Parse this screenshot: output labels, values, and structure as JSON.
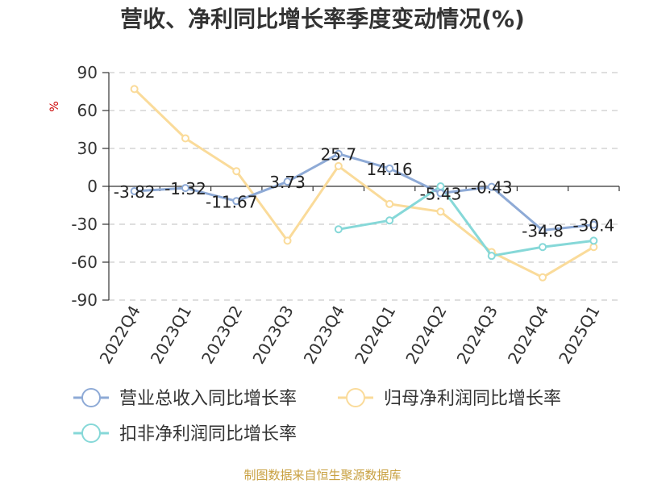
{
  "chart_data": {
    "type": "line",
    "title": "营收、净利同比增长率季度变动情况(%)",
    "ylabel": "%",
    "ylim": [
      -90,
      90
    ],
    "yticks": [
      90,
      60,
      30,
      0,
      -30,
      -60,
      -90
    ],
    "categories": [
      "2022Q4",
      "2023Q1",
      "2023Q2",
      "2023Q3",
      "2023Q4",
      "2024Q1",
      "2024Q2",
      "2024Q3",
      "2024Q4",
      "2025Q1"
    ],
    "grid": true,
    "legend_position": "bottom",
    "series": [
      {
        "name": "营业总收入同比增长率",
        "color": "#8eaad6",
        "values": [
          -3.82,
          -1.32,
          -11.67,
          3.73,
          25.7,
          14.16,
          -5.43,
          -0.43,
          -34.8,
          -30.4
        ],
        "labels": [
          "-3.82",
          "-1.32",
          "-11.67",
          "3.73",
          "25.7",
          "14.16",
          "-5.43",
          "-0.43",
          "-34.8",
          "-30.4"
        ]
      },
      {
        "name": "归母净利润同比增长率",
        "color": "#fadb9a",
        "values": [
          77,
          38,
          12,
          -43,
          16,
          -14,
          -20,
          -52,
          -72,
          -48
        ]
      },
      {
        "name": "扣非净利润同比增长率",
        "color": "#86d8d8",
        "values": [
          null,
          null,
          null,
          null,
          -34,
          -27,
          0,
          -55,
          -48,
          -43
        ]
      }
    ]
  },
  "source": "制图数据来自恒生聚源数据库"
}
